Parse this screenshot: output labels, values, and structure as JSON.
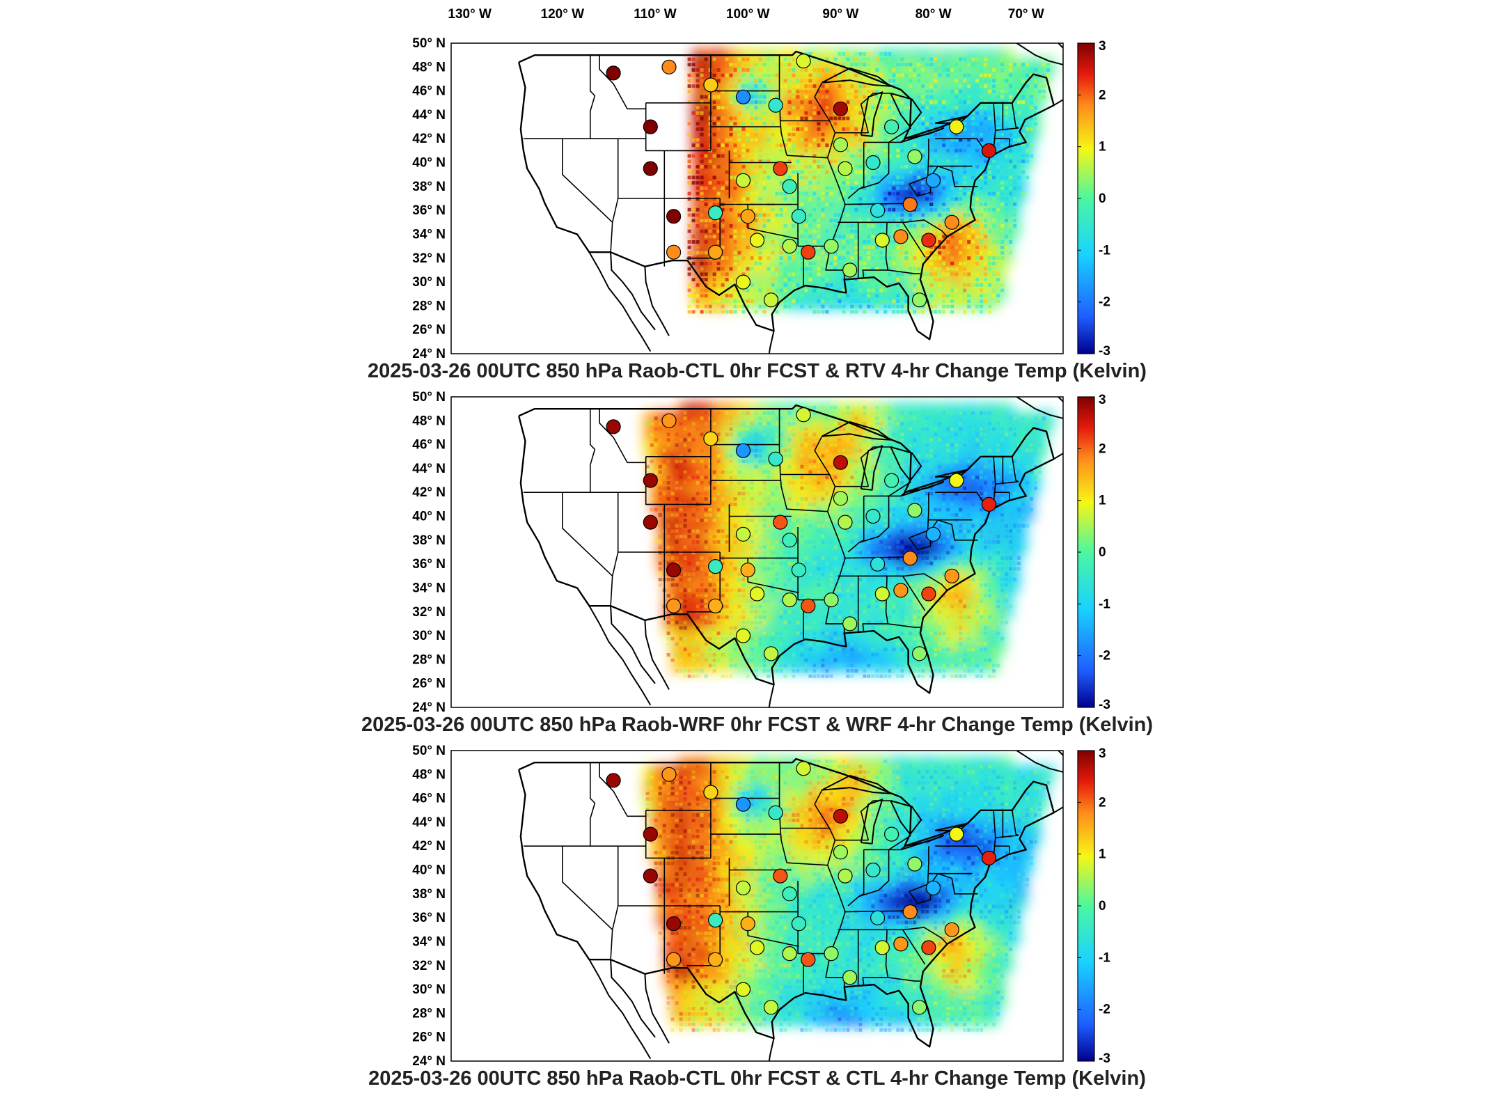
{
  "figure": {
    "lon_ticks": [
      "130° W",
      "120° W",
      "110° W",
      "100° W",
      "90° W",
      "80° W",
      "70° W"
    ],
    "lat_ticks": [
      "50° N",
      "48° N",
      "46° N",
      "44° N",
      "42° N",
      "40° N",
      "38° N",
      "36° N",
      "34° N",
      "32° N",
      "30° N",
      "28° N",
      "26° N",
      "24° N"
    ],
    "colorbar_ticks": [
      "3",
      "2",
      "1",
      "0",
      "-1",
      "-2",
      "-3"
    ],
    "colors": {
      "deep_blue": "#00008f",
      "blue": "#1f5fff",
      "cyan": "#19d3ff",
      "green": "#4cf7a0",
      "yellow": "#f6f615",
      "orange": "#ff8c1a",
      "red": "#e61a0d",
      "dark_red": "#7f0000",
      "border": "#000000"
    },
    "panels": [
      {
        "title": "2025-03-26 00UTC 850 hPa Raob-CTL 0hr FCST & RTV 4-hr Change Temp (Kelvin)",
        "field_variant": "rtv"
      },
      {
        "title": "2025-03-26 00UTC 850 hPa Raob-WRF 0hr FCST & WRF 4-hr Change Temp (Kelvin)",
        "field_variant": "wrf"
      },
      {
        "title": "2025-03-26 00UTC 850 hPa Raob-CTL 0hr FCST & CTL 4-hr Change Temp (Kelvin)",
        "field_variant": "ctl"
      }
    ],
    "stations": [
      {
        "lon": -114.5,
        "lat": 47.5,
        "v": 3
      },
      {
        "lon": -108.5,
        "lat": 48.0,
        "v": 1.8
      },
      {
        "lon": -104.0,
        "lat": 46.5,
        "v": 1.3
      },
      {
        "lon": -100.5,
        "lat": 45.5,
        "v": -1.8
      },
      {
        "lon": -97.0,
        "lat": 44.8,
        "v": -0.5
      },
      {
        "lon": -94.0,
        "lat": 48.5,
        "v": 0.8
      },
      {
        "lon": -90.0,
        "lat": 44.5,
        "v": 2.8
      },
      {
        "lon": -84.5,
        "lat": 43.0,
        "v": -0.2
      },
      {
        "lon": -77.5,
        "lat": 43.0,
        "v": 1.0
      },
      {
        "lon": -74.0,
        "lat": 41.0,
        "v": 2.5
      },
      {
        "lon": -110.5,
        "lat": 43.0,
        "v": 3
      },
      {
        "lon": -110.5,
        "lat": 39.5,
        "v": 3
      },
      {
        "lon": -108.0,
        "lat": 35.5,
        "v": 3
      },
      {
        "lon": -108.0,
        "lat": 32.5,
        "v": 1.8
      },
      {
        "lon": -103.5,
        "lat": 35.8,
        "v": -0.4
      },
      {
        "lon": -103.5,
        "lat": 32.5,
        "v": 1.6
      },
      {
        "lon": -100.5,
        "lat": 38.5,
        "v": 0.7
      },
      {
        "lon": -96.5,
        "lat": 39.5,
        "v": 2.2
      },
      {
        "lon": -100.0,
        "lat": 35.5,
        "v": 1.6
      },
      {
        "lon": -99.0,
        "lat": 33.5,
        "v": 0.9
      },
      {
        "lon": -95.5,
        "lat": 38.0,
        "v": -0.3
      },
      {
        "lon": -94.5,
        "lat": 35.5,
        "v": -0.4
      },
      {
        "lon": -95.5,
        "lat": 33.0,
        "v": 0.6
      },
      {
        "lon": -93.5,
        "lat": 32.5,
        "v": 2.2
      },
      {
        "lon": -90.0,
        "lat": 41.5,
        "v": 0.5
      },
      {
        "lon": -89.5,
        "lat": 39.5,
        "v": 0.6
      },
      {
        "lon": -86.5,
        "lat": 40.0,
        "v": -0.5
      },
      {
        "lon": -86.0,
        "lat": 36.0,
        "v": -0.7
      },
      {
        "lon": -85.5,
        "lat": 33.5,
        "v": 0.8
      },
      {
        "lon": -83.5,
        "lat": 33.8,
        "v": 1.8
      },
      {
        "lon": -82.5,
        "lat": 36.5,
        "v": 1.9
      },
      {
        "lon": -82.0,
        "lat": 40.5,
        "v": 0.4
      },
      {
        "lon": -80.0,
        "lat": 38.5,
        "v": -1.5
      },
      {
        "lon": -80.5,
        "lat": 33.5,
        "v": 2.3
      },
      {
        "lon": -78.0,
        "lat": 35.0,
        "v": 1.8
      },
      {
        "lon": -89.0,
        "lat": 31.0,
        "v": 0.5
      },
      {
        "lon": -91.0,
        "lat": 33.0,
        "v": 0.4
      },
      {
        "lon": -97.5,
        "lat": 28.5,
        "v": 0.7
      },
      {
        "lon": -100.5,
        "lat": 30.0,
        "v": 0.9
      },
      {
        "lon": -81.5,
        "lat": 28.5,
        "v": 0.4
      }
    ]
  }
}
